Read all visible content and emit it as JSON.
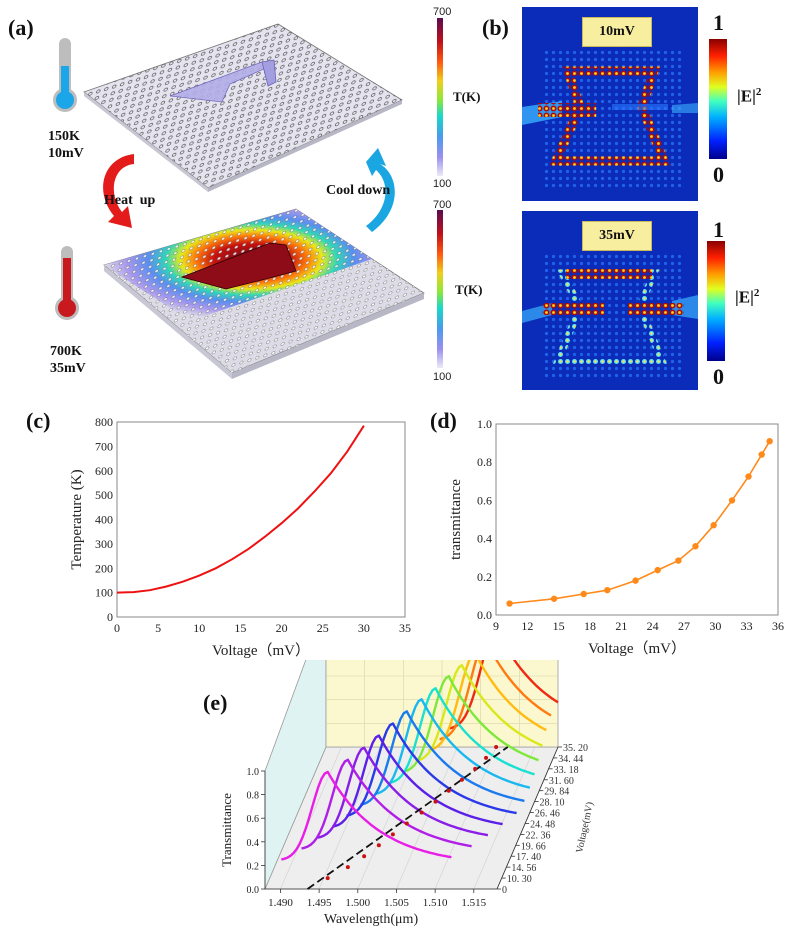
{
  "panels": {
    "a": {
      "label": "(a)",
      "state_cold": {
        "temperature": "150K",
        "voltage": "10mV"
      },
      "state_hot": {
        "temperature": "700K",
        "voltage": "35mV"
      },
      "arrow_heat": "Heat  up",
      "arrow_cool": "Cool down",
      "colorbar": {
        "title": "T(K)",
        "max": "700",
        "min": "100"
      },
      "colors": {
        "cold_mercury": "#1aa6e8",
        "hot_mercury": "#c8191f",
        "heat_arrow": "#e31b1b",
        "cool_arrow": "#1aa6e0",
        "slab": "#dcdbe8"
      }
    },
    "b": {
      "label": "(b)",
      "top_tag": "10mV",
      "bottom_tag": "35mV",
      "colorbar": {
        "title": "|E|",
        "title_sup": "2",
        "max": "1",
        "min": "0"
      },
      "colors": {
        "field_bg": "#0a2cb8",
        "tag_bg": "#f8eea0"
      }
    },
    "c": {
      "label": "(c)"
    },
    "d": {
      "label": "(d)"
    },
    "e": {
      "label": "(e)"
    }
  },
  "chart_data": [
    {
      "id": "c",
      "type": "line",
      "title": "",
      "xlabel": "Voltage（mV）",
      "ylabel": "Temperature (K)",
      "xlim": [
        0,
        35
      ],
      "ylim": [
        0,
        800
      ],
      "xticks": [
        "0",
        "5",
        "10",
        "15",
        "20",
        "25",
        "30",
        "35"
      ],
      "yticks": [
        "0",
        "100",
        "200",
        "300",
        "400",
        "500",
        "600",
        "700",
        "800"
      ],
      "grid": false,
      "series": [
        {
          "name": "Temperature",
          "color": "#ee1111",
          "x": [
            0,
            2,
            4,
            6,
            8,
            10,
            12,
            14,
            16,
            18,
            20,
            22,
            24,
            26,
            28,
            30
          ],
          "y": [
            100,
            102,
            110,
            125,
            145,
            170,
            200,
            237,
            280,
            330,
            385,
            445,
            515,
            590,
            680,
            785
          ]
        }
      ]
    },
    {
      "id": "d",
      "type": "line",
      "title": "",
      "xlabel": "Voltage（mV）",
      "ylabel": "transmittance",
      "xlim": [
        9,
        36
      ],
      "ylim": [
        0.0,
        1.0
      ],
      "xticks": [
        "9",
        "12",
        "15",
        "18",
        "21",
        "24",
        "27",
        "30",
        "33",
        "36"
      ],
      "yticks": [
        "0.0",
        "0.2",
        "0.4",
        "0.6",
        "0.8",
        "1.0"
      ],
      "grid": false,
      "series": [
        {
          "name": "transmittance",
          "color": "#ff8a1a",
          "markers": true,
          "x": [
            10.3,
            14.56,
            17.4,
            19.66,
            22.36,
            24.48,
            26.46,
            28.1,
            29.84,
            31.6,
            33.18,
            34.44,
            35.2
          ],
          "y": [
            0.06,
            0.085,
            0.11,
            0.13,
            0.18,
            0.235,
            0.285,
            0.36,
            0.47,
            0.6,
            0.725,
            0.84,
            0.91
          ]
        }
      ]
    },
    {
      "id": "e",
      "type": "line",
      "subtype": "3d-waterfall",
      "title": "",
      "xlabel": "Wavelength(μm)",
      "ylabel": "Transmittance",
      "zlabel": "Voltage(mV)",
      "xlim": [
        1.488,
        1.518
      ],
      "ylim": [
        0.0,
        1.0
      ],
      "xticks": [
        "1.490",
        "1.495",
        "1.500",
        "1.505",
        "1.510",
        "1.515"
      ],
      "yticks": [
        "0.0",
        "0.2",
        "0.4",
        "0.6",
        "0.8",
        "1.0"
      ],
      "zticks": [
        "0",
        "10. 30",
        "14. 56",
        "17. 40",
        "19. 66",
        "22. 36",
        "24. 48",
        "26. 46",
        "28. 10",
        "29. 84",
        "31. 60",
        "33. 18",
        "34. 44",
        "35. 20"
      ],
      "series": [
        {
          "voltage": 10.3,
          "color": "#e81ee8",
          "peak_wavelength": 1.4955,
          "peak": 0.9
        },
        {
          "voltage": 14.56,
          "color": "#b01ee8",
          "peak_wavelength": 1.4975,
          "peak": 0.91
        },
        {
          "voltage": 17.4,
          "color": "#8a1ee8",
          "peak_wavelength": 1.499,
          "peak": 0.92
        },
        {
          "voltage": 19.66,
          "color": "#5a20e8",
          "peak_wavelength": 1.5003,
          "peak": 0.93
        },
        {
          "voltage": 22.36,
          "color": "#2a3ae8",
          "peak_wavelength": 1.5015,
          "peak": 0.94
        },
        {
          "voltage": 24.48,
          "color": "#1a7aee",
          "peak_wavelength": 1.5027,
          "peak": 0.95
        },
        {
          "voltage": 26.46,
          "color": "#1ab8f0",
          "peak_wavelength": 1.504,
          "peak": 0.96
        },
        {
          "voltage": 28.1,
          "color": "#1ae0d0",
          "peak_wavelength": 1.5052,
          "peak": 0.96
        },
        {
          "voltage": 29.84,
          "color": "#7ee83a",
          "peak_wavelength": 1.5063,
          "peak": 0.97
        },
        {
          "voltage": 31.6,
          "color": "#d8e81a",
          "peak_wavelength": 1.5074,
          "peak": 0.97
        },
        {
          "voltage": 33.18,
          "color": "#ffbb10",
          "peak_wavelength": 1.5085,
          "peak": 0.98
        },
        {
          "voltage": 34.44,
          "color": "#ff7a10",
          "peak_wavelength": 1.5093,
          "peak": 0.99
        },
        {
          "voltage": 35.2,
          "color": "#ee2a10",
          "peak_wavelength": 1.51,
          "peak": 1.0
        }
      ],
      "wall_colors": {
        "left": "#dff3f3",
        "back": "#fbf8d0",
        "floor": "#eeeeee"
      },
      "trend_line_color": "#111111",
      "trend_marker_color": "#cc1010"
    }
  ]
}
